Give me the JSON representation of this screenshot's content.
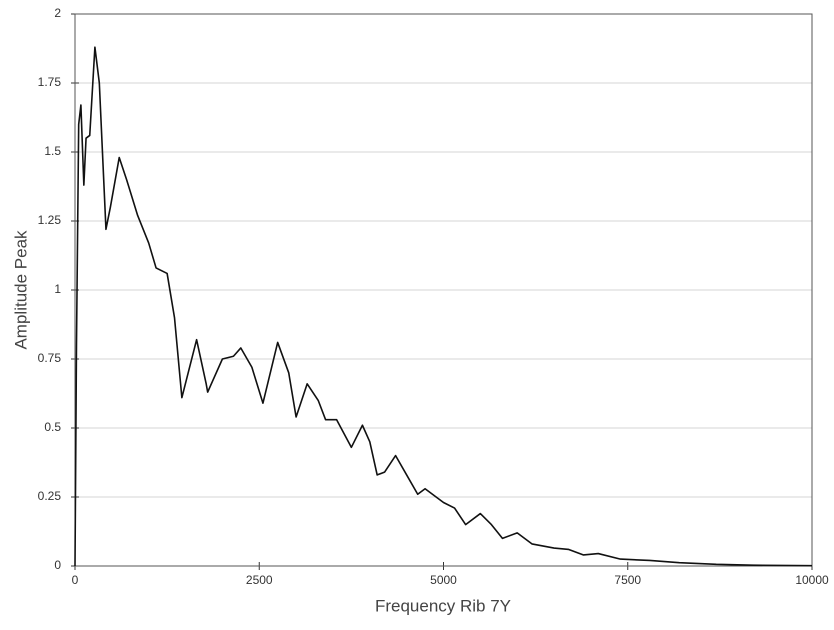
{
  "chart_data": {
    "type": "line",
    "x_label": "Frequency Rib 7Y",
    "y_label": "Amplitude Peak",
    "xlim": [
      0,
      10000
    ],
    "ylim": [
      0,
      2
    ],
    "xticks": [
      0,
      2500,
      5000,
      7500,
      10000
    ],
    "yticks": [
      0,
      0.25,
      0.5,
      0.75,
      1,
      1.25,
      1.5,
      1.75,
      2
    ],
    "grid": true,
    "series": [
      {
        "name": "Amplitude Peak",
        "color": "#111111",
        "x": [
          0,
          20,
          50,
          80,
          120,
          150,
          200,
          270,
          330,
          420,
          480,
          600,
          700,
          850,
          1000,
          1100,
          1250,
          1350,
          1450,
          1650,
          1780,
          1800,
          2000,
          2150,
          2250,
          2400,
          2550,
          2750,
          2900,
          3000,
          3150,
          3300,
          3400,
          3550,
          3750,
          3900,
          4000,
          4100,
          4200,
          4350,
          4500,
          4650,
          4750,
          4900,
          5000,
          5150,
          5300,
          5500,
          5650,
          5800,
          6000,
          6200,
          6500,
          6700,
          6900,
          7100,
          7400,
          7800,
          8200,
          8700,
          9200,
          10000
        ],
        "values": [
          0,
          0.8,
          1.6,
          1.67,
          1.38,
          1.55,
          1.56,
          1.88,
          1.75,
          1.22,
          1.3,
          1.48,
          1.4,
          1.27,
          1.17,
          1.08,
          1.06,
          0.9,
          0.61,
          0.82,
          0.66,
          0.63,
          0.75,
          0.76,
          0.79,
          0.72,
          0.59,
          0.81,
          0.7,
          0.54,
          0.66,
          0.6,
          0.53,
          0.53,
          0.43,
          0.51,
          0.45,
          0.33,
          0.34,
          0.4,
          0.33,
          0.26,
          0.28,
          0.25,
          0.23,
          0.21,
          0.15,
          0.19,
          0.15,
          0.1,
          0.12,
          0.08,
          0.065,
          0.06,
          0.04,
          0.045,
          0.025,
          0.02,
          0.012,
          0.006,
          0.003,
          0.001
        ]
      }
    ]
  }
}
